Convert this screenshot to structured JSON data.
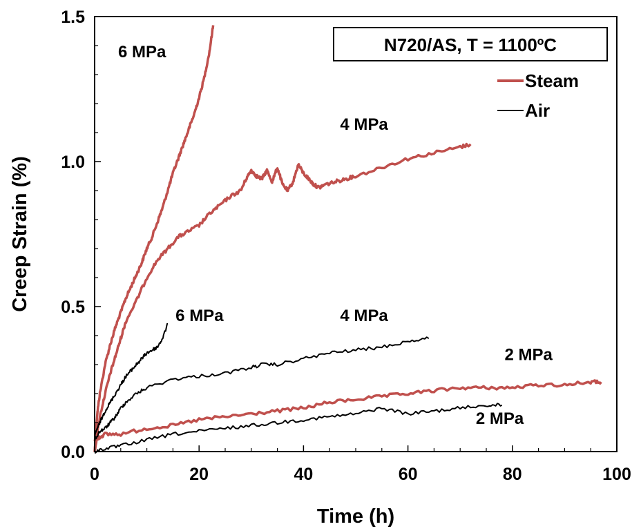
{
  "chart_data": {
    "type": "line",
    "title": "N720/AS, T = 1100ºC",
    "xlabel": "Time (h)",
    "ylabel": "Creep Strain (%)",
    "xlim": [
      0,
      100
    ],
    "ylim": [
      0,
      1.5
    ],
    "xticks": [
      "0",
      "20",
      "40",
      "60",
      "80",
      "100"
    ],
    "yticks": [
      "0.0",
      "0.5",
      "1.0",
      "1.5"
    ],
    "grid": false,
    "legend_position": "top-right",
    "colors": {
      "steam": "#c0504d",
      "air": "#000000"
    },
    "legend": [
      {
        "name": "Steam",
        "color": "#c0504d"
      },
      {
        "name": "Air",
        "color": "#000000"
      }
    ],
    "series": [
      {
        "name": "Steam",
        "label": "6 MPa",
        "color": "#c0504d",
        "x": [
          0,
          0.5,
          1,
          2,
          3,
          4,
          5,
          6,
          7,
          8,
          9,
          10,
          11,
          12,
          13,
          14,
          15,
          16,
          17,
          18,
          19,
          20,
          21,
          22,
          22.7
        ],
        "y": [
          0,
          0.13,
          0.2,
          0.3,
          0.37,
          0.43,
          0.48,
          0.53,
          0.57,
          0.61,
          0.65,
          0.7,
          0.74,
          0.79,
          0.84,
          0.9,
          0.96,
          1.01,
          1.06,
          1.11,
          1.16,
          1.22,
          1.29,
          1.38,
          1.47
        ]
      },
      {
        "name": "Steam",
        "label": "4 MPa",
        "color": "#c0504d",
        "x": [
          0,
          1,
          2,
          3,
          4,
          5,
          6,
          8,
          10,
          12,
          14,
          16,
          18,
          20,
          22,
          24,
          26,
          28,
          29,
          30,
          31,
          32,
          33,
          34,
          35,
          36,
          37,
          38,
          39,
          40,
          41,
          42,
          43,
          44,
          46,
          48,
          50,
          55,
          60,
          65,
          70,
          72
        ],
        "y": [
          0,
          0.12,
          0.2,
          0.27,
          0.33,
          0.39,
          0.45,
          0.52,
          0.6,
          0.66,
          0.7,
          0.74,
          0.76,
          0.78,
          0.82,
          0.85,
          0.88,
          0.9,
          0.94,
          0.97,
          0.95,
          0.94,
          0.97,
          0.93,
          0.98,
          0.92,
          0.9,
          0.93,
          0.99,
          0.96,
          0.94,
          0.92,
          0.91,
          0.92,
          0.93,
          0.94,
          0.95,
          0.98,
          1.01,
          1.03,
          1.05,
          1.06
        ]
      },
      {
        "name": "Steam",
        "label": "2 MPa",
        "color": "#c0504d",
        "x": [
          0,
          1,
          2,
          5,
          10,
          15,
          20,
          25,
          30,
          35,
          40,
          45,
          50,
          55,
          60,
          65,
          70,
          75,
          80,
          85,
          90,
          95,
          97
        ],
        "y": [
          0.04,
          0.05,
          0.06,
          0.06,
          0.08,
          0.09,
          0.11,
          0.12,
          0.13,
          0.14,
          0.15,
          0.17,
          0.18,
          0.19,
          0.2,
          0.21,
          0.22,
          0.22,
          0.22,
          0.23,
          0.23,
          0.24,
          0.24
        ]
      },
      {
        "name": "Air",
        "label": "6 MPa",
        "color": "#000000",
        "x": [
          0,
          0.5,
          1,
          2,
          3,
          4,
          5,
          6,
          7,
          8,
          9,
          10,
          11,
          12,
          13,
          14
        ],
        "y": [
          0.05,
          0.08,
          0.1,
          0.14,
          0.17,
          0.2,
          0.23,
          0.26,
          0.28,
          0.3,
          0.32,
          0.34,
          0.35,
          0.36,
          0.39,
          0.44
        ]
      },
      {
        "name": "Air",
        "label": "4 MPa",
        "color": "#000000",
        "x": [
          0,
          1,
          2,
          3,
          4,
          5,
          6,
          8,
          10,
          15,
          20,
          25,
          30,
          32,
          35,
          40,
          45,
          50,
          55,
          60,
          64
        ],
        "y": [
          0.04,
          0.07,
          0.08,
          0.1,
          0.12,
          0.15,
          0.17,
          0.2,
          0.22,
          0.25,
          0.26,
          0.27,
          0.29,
          0.3,
          0.3,
          0.32,
          0.34,
          0.35,
          0.36,
          0.38,
          0.39
        ]
      },
      {
        "name": "Air",
        "label": "2 MPa",
        "color": "#000000",
        "x": [
          0,
          2,
          5,
          10,
          15,
          20,
          25,
          30,
          35,
          40,
          45,
          50,
          55,
          60,
          65,
          70,
          75,
          78
        ],
        "y": [
          0,
          0.01,
          0.02,
          0.04,
          0.06,
          0.07,
          0.08,
          0.09,
          0.1,
          0.11,
          0.12,
          0.13,
          0.15,
          0.13,
          0.14,
          0.15,
          0.16,
          0.16
        ]
      }
    ],
    "annotations": [
      {
        "text": "6 MPa",
        "x": 4.5,
        "y": 1.36
      },
      {
        "text": "4 MPa",
        "x": 47,
        "y": 1.11
      },
      {
        "text": "6 MPa",
        "x": 15.5,
        "y": 0.45
      },
      {
        "text": "4 MPa",
        "x": 47,
        "y": 0.45
      },
      {
        "text": "2 MPa",
        "x": 78.5,
        "y": 0.315
      },
      {
        "text": "2 MPa",
        "x": 73,
        "y": 0.095
      }
    ]
  }
}
